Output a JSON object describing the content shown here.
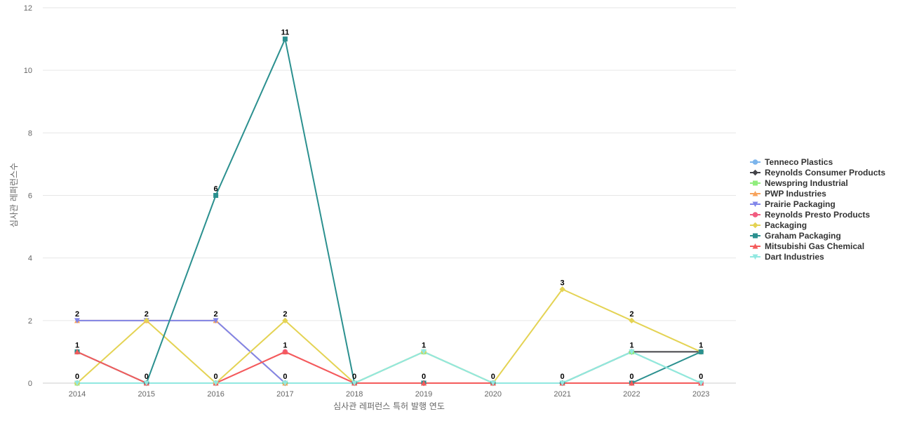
{
  "chart_data": {
    "type": "line",
    "xlabel": "심사관 레퍼런스 특허 발행 연도",
    "ylabel": "심사관 레퍼런스수",
    "x": [
      2014,
      2015,
      2016,
      2017,
      2018,
      2019,
      2020,
      2021,
      2022,
      2023
    ],
    "yticks": [
      0,
      2,
      4,
      6,
      8,
      10,
      12
    ],
    "ylim": [
      0,
      12
    ],
    "grid": true,
    "legend_position": "right",
    "series": [
      {
        "name": "Tenneco Plastics",
        "color": "#7cb5ec",
        "marker": "circle",
        "values": [
          0,
          0,
          0,
          0,
          0,
          1,
          0,
          0,
          1,
          0
        ]
      },
      {
        "name": "Reynolds Consumer Products",
        "color": "#434348",
        "marker": "diamond",
        "values": [
          0,
          0,
          0,
          0,
          0,
          0,
          0,
          0,
          1,
          1
        ]
      },
      {
        "name": "Newspring Industrial",
        "color": "#90ed7d",
        "marker": "square",
        "values": [
          0,
          0,
          0,
          0,
          0,
          1,
          0,
          0,
          1,
          0
        ]
      },
      {
        "name": "PWP Industries",
        "color": "#f7a35c",
        "marker": "triangle",
        "values": [
          2,
          2,
          2,
          0,
          0,
          0,
          0,
          0,
          0,
          0
        ]
      },
      {
        "name": "Prairie Packaging",
        "color": "#8085e9",
        "marker": "triangle-down",
        "values": [
          2,
          2,
          2,
          0,
          0,
          0,
          0,
          0,
          0,
          0
        ]
      },
      {
        "name": "Reynolds Presto Products",
        "color": "#f15c80",
        "marker": "circle",
        "values": [
          1,
          0,
          0,
          1,
          0,
          0,
          0,
          0,
          0,
          0
        ]
      },
      {
        "name": "Packaging",
        "color": "#e4d354",
        "marker": "diamond",
        "values": [
          0,
          2,
          0,
          2,
          0,
          1,
          0,
          3,
          2,
          1
        ]
      },
      {
        "name": "Graham Packaging",
        "color": "#2b908f",
        "marker": "square",
        "values": [
          1,
          0,
          6,
          11,
          0,
          0,
          0,
          0,
          0,
          1
        ]
      },
      {
        "name": "Mitsubishi Gas Chemical",
        "color": "#f45b5b",
        "marker": "triangle",
        "values": [
          1,
          0,
          0,
          1,
          0,
          0,
          0,
          0,
          0,
          0
        ]
      },
      {
        "name": "Dart Industries",
        "color": "#91e8e1",
        "marker": "triangle-down",
        "values": [
          0,
          0,
          0,
          0,
          0,
          1,
          0,
          0,
          1,
          0
        ]
      }
    ],
    "point_labels": [
      {
        "x": 2014,
        "text": "2",
        "value": 2
      },
      {
        "x": 2014,
        "text": "1",
        "value": 1
      },
      {
        "x": 2014,
        "text": "0",
        "value": 0
      },
      {
        "x": 2015,
        "text": "2",
        "value": 2
      },
      {
        "x": 2015,
        "text": "0",
        "value": 0
      },
      {
        "x": 2016,
        "text": "6",
        "value": 6
      },
      {
        "x": 2016,
        "text": "2",
        "value": 2
      },
      {
        "x": 2016,
        "text": "0",
        "value": 0
      },
      {
        "x": 2017,
        "text": "11",
        "value": 11
      },
      {
        "x": 2017,
        "text": "2",
        "value": 2
      },
      {
        "x": 2017,
        "text": "1",
        "value": 1
      },
      {
        "x": 2017,
        "text": "0",
        "value": 0
      },
      {
        "x": 2018,
        "text": "0",
        "value": 0
      },
      {
        "x": 2019,
        "text": "1",
        "value": 1
      },
      {
        "x": 2019,
        "text": "0",
        "value": 0
      },
      {
        "x": 2020,
        "text": "0",
        "value": 0
      },
      {
        "x": 2021,
        "text": "3",
        "value": 3
      },
      {
        "x": 2021,
        "text": "0",
        "value": 0
      },
      {
        "x": 2022,
        "text": "2",
        "value": 2
      },
      {
        "x": 2022,
        "text": "1",
        "value": 1
      },
      {
        "x": 2022,
        "text": "0",
        "value": 0
      },
      {
        "x": 2023,
        "text": "1",
        "value": 1
      },
      {
        "x": 2023,
        "text": "0",
        "value": 0
      }
    ]
  }
}
